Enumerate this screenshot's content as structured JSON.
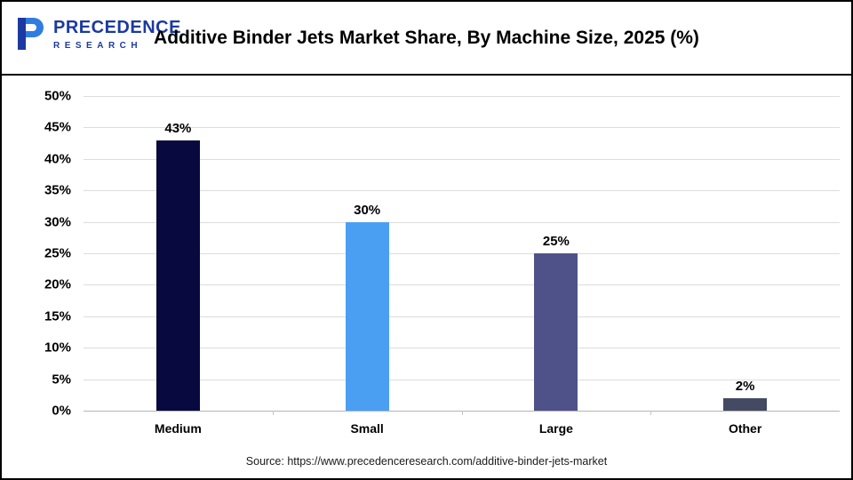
{
  "header": {
    "logo": {
      "line1": "PRECEDENCE",
      "line2": "RESEARCH",
      "brand_dark_blue": "#1c3aa0",
      "brand_light_blue": "#2f7de0"
    },
    "title": "Additive Binder Jets Market Share, By Machine Size, 2025 (%)"
  },
  "chart_data": {
    "type": "bar",
    "title": "Additive Binder Jets Market Share, By Machine Size, 2025 (%)",
    "categories": [
      "Medium",
      "Small",
      "Large",
      "Other"
    ],
    "values": [
      43,
      30,
      25,
      2
    ],
    "value_labels": [
      "43%",
      "30%",
      "25%",
      "2%"
    ],
    "bar_colors": [
      "#07093f",
      "#4b9ff2",
      "#4f5288",
      "#454a63"
    ],
    "xlabel": "",
    "ylabel": "",
    "ylim": [
      0,
      50
    ],
    "ytick_step": 5,
    "ytick_labels": [
      "0%",
      "5%",
      "10%",
      "15%",
      "20%",
      "25%",
      "30%",
      "35%",
      "40%",
      "45%",
      "50%"
    ],
    "grid": true,
    "legend_position": "none"
  },
  "footer": {
    "source": "Source: https://www.precedenceresearch.com/additive-binder-jets-market"
  }
}
